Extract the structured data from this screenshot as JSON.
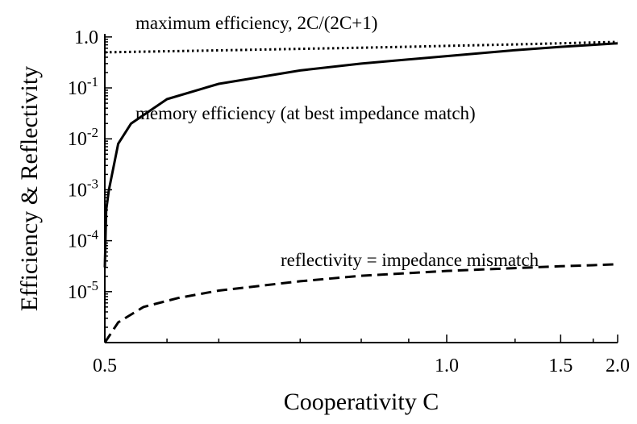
{
  "chart_data": {
    "type": "line",
    "xlabel": "Cooperativity C",
    "ylabel": "Efficiency & Reflectivity",
    "xscale": "reciprocal",
    "yscale": "log",
    "xlim": [
      0.5,
      2.0
    ],
    "ylim": [
      1e-06,
      1.15
    ],
    "grid": false,
    "x_ticks": [
      {
        "value": 0.5,
        "label": "0.5"
      },
      {
        "value": 1.0,
        "label": "1.0"
      },
      {
        "value": 1.5,
        "label": "1.5"
      },
      {
        "value": 2.0,
        "label": "2.0"
      }
    ],
    "y_ticks": [
      {
        "value": 1.0,
        "label": "1.0",
        "base": "",
        "exp": ""
      },
      {
        "value": 0.1,
        "label": "10-1",
        "base": "10",
        "exp": "-1"
      },
      {
        "value": 0.01,
        "label": "10-2",
        "base": "10",
        "exp": "-2"
      },
      {
        "value": 0.001,
        "label": "10-3",
        "base": "10",
        "exp": "-3"
      },
      {
        "value": 0.0001,
        "label": "10-4",
        "base": "10",
        "exp": "-4"
      },
      {
        "value": 1e-05,
        "label": "10-5",
        "base": "10",
        "exp": "-5"
      }
    ],
    "series": [
      {
        "name": "maximum efficiency, 2C/(2C+1)",
        "style": "dotted",
        "x": [
          0.5,
          0.6,
          0.7,
          0.8,
          0.9,
          1.0,
          1.25,
          1.5,
          1.75,
          2.0
        ],
        "y": [
          0.5,
          0.545,
          0.583,
          0.615,
          0.643,
          0.667,
          0.714,
          0.75,
          0.778,
          0.8
        ]
      },
      {
        "name": "memory efficiency (at best impedance match)",
        "style": "solid",
        "x": [
          0.5,
          0.501,
          0.503,
          0.51,
          0.52,
          0.55,
          0.6,
          0.7,
          0.8,
          1.0,
          1.25,
          1.5,
          1.75,
          2.0
        ],
        "y": [
          3e-05,
          0.0004,
          0.001,
          0.008,
          0.02,
          0.06,
          0.12,
          0.22,
          0.3,
          0.42,
          0.55,
          0.64,
          0.7,
          0.75
        ]
      },
      {
        "name": "reflectivity = impedance mismatch",
        "style": "dashed",
        "x": [
          0.5,
          0.51,
          0.53,
          0.56,
          0.6,
          0.7,
          0.8,
          1.0,
          1.25,
          1.5,
          1.75,
          2.0
        ],
        "y": [
          1e-06,
          2.5e-06,
          5e-06,
          7.5e-06,
          1.05e-05,
          1.6e-05,
          2.05e-05,
          2.55e-05,
          2.9e-05,
          3.15e-05,
          3.3e-05,
          3.45e-05
        ]
      }
    ]
  }
}
